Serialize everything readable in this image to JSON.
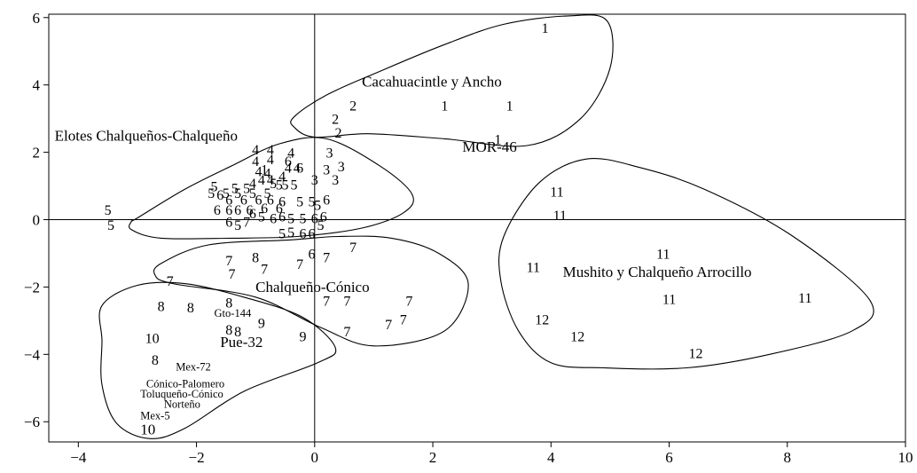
{
  "chart_data": {
    "type": "scatter",
    "xlim": [
      -4.5,
      10
    ],
    "ylim": [
      -6.6,
      6.1
    ],
    "x_ticks": [
      -4,
      -2,
      0,
      2,
      4,
      6,
      8,
      10
    ],
    "y_ticks": [
      -6,
      -4,
      -2,
      0,
      2,
      4,
      6
    ],
    "x_tick_labels": [
      "−4",
      "−2",
      "0",
      "2",
      "4",
      "6",
      "8",
      "10"
    ],
    "y_tick_labels": [
      "−6",
      "−4",
      "−2",
      "0",
      "2",
      "4",
      "6"
    ],
    "grid": false,
    "reference_lines": {
      "x": 0,
      "y": 0
    },
    "points": [
      {
        "x": 3.9,
        "y": 5.7,
        "label": "1"
      },
      {
        "x": 2.2,
        "y": 3.4,
        "label": "1"
      },
      {
        "x": 3.3,
        "y": 3.4,
        "label": "1"
      },
      {
        "x": 3.1,
        "y": 2.4,
        "label": "1"
      },
      {
        "x": 0.65,
        "y": 3.4,
        "label": "2"
      },
      {
        "x": 0.35,
        "y": 3.0,
        "label": "2"
      },
      {
        "x": 0.4,
        "y": 2.6,
        "label": "2"
      },
      {
        "x": 0.25,
        "y": 2.0,
        "label": "3"
      },
      {
        "x": 0.45,
        "y": 1.6,
        "label": "3"
      },
      {
        "x": 0.2,
        "y": 1.5,
        "label": "3"
      },
      {
        "x": 0.0,
        "y": 1.2,
        "label": "3"
      },
      {
        "x": 0.35,
        "y": 1.2,
        "label": "3"
      },
      {
        "x": -1.0,
        "y": 2.1,
        "label": "4"
      },
      {
        "x": -0.75,
        "y": 2.1,
        "label": "4"
      },
      {
        "x": -0.4,
        "y": 2.0,
        "label": "4"
      },
      {
        "x": -1.0,
        "y": 1.75,
        "label": "4"
      },
      {
        "x": -0.75,
        "y": 1.8,
        "label": "4"
      },
      {
        "x": -0.3,
        "y": 1.55,
        "label": "4"
      },
      {
        "x": -0.45,
        "y": 1.55,
        "label": "4"
      },
      {
        "x": -0.55,
        "y": 1.3,
        "label": "4"
      },
      {
        "x": -0.95,
        "y": 1.45,
        "label": "4"
      },
      {
        "x": -0.8,
        "y": 1.4,
        "label": "4"
      },
      {
        "x": -0.75,
        "y": 1.2,
        "label": "4"
      },
      {
        "x": -0.9,
        "y": 1.2,
        "label": "4"
      },
      {
        "x": -1.05,
        "y": 1.1,
        "label": "4"
      },
      {
        "x": -0.45,
        "y": 1.75,
        "label": "6"
      },
      {
        "x": -0.25,
        "y": 1.55,
        "label": "6"
      },
      {
        "x": -0.85,
        "y": 1.5,
        "label": "1"
      },
      {
        "x": -0.5,
        "y": 1.05,
        "label": "5"
      },
      {
        "x": -0.6,
        "y": 1.05,
        "label": "5"
      },
      {
        "x": -0.7,
        "y": 1.1,
        "label": "5"
      },
      {
        "x": -0.35,
        "y": 1.05,
        "label": "5"
      },
      {
        "x": -1.15,
        "y": 0.95,
        "label": "5"
      },
      {
        "x": -1.35,
        "y": 0.95,
        "label": "5"
      },
      {
        "x": -1.7,
        "y": 1.0,
        "label": "5"
      },
      {
        "x": -1.75,
        "y": 0.8,
        "label": "5"
      },
      {
        "x": -1.5,
        "y": 0.8,
        "label": "5"
      },
      {
        "x": -1.3,
        "y": 0.8,
        "label": "5"
      },
      {
        "x": -1.05,
        "y": 0.8,
        "label": "5"
      },
      {
        "x": -0.8,
        "y": 0.8,
        "label": "5"
      },
      {
        "x": -1.6,
        "y": 0.75,
        "label": "6"
      },
      {
        "x": -1.45,
        "y": 0.6,
        "label": "6"
      },
      {
        "x": -1.2,
        "y": 0.6,
        "label": "6"
      },
      {
        "x": -0.95,
        "y": 0.6,
        "label": "6"
      },
      {
        "x": -0.75,
        "y": 0.6,
        "label": "6"
      },
      {
        "x": -0.55,
        "y": 0.55,
        "label": "6"
      },
      {
        "x": -0.25,
        "y": 0.55,
        "label": "5"
      },
      {
        "x": -0.05,
        "y": 0.55,
        "label": "5"
      },
      {
        "x": 0.2,
        "y": 0.6,
        "label": "6"
      },
      {
        "x": 0.05,
        "y": 0.45,
        "label": "5"
      },
      {
        "x": -1.65,
        "y": 0.3,
        "label": "6"
      },
      {
        "x": -1.45,
        "y": 0.3,
        "label": "6"
      },
      {
        "x": -1.3,
        "y": 0.3,
        "label": "6"
      },
      {
        "x": -1.1,
        "y": 0.3,
        "label": "6"
      },
      {
        "x": -0.85,
        "y": 0.35,
        "label": "6"
      },
      {
        "x": -0.6,
        "y": 0.35,
        "label": "6"
      },
      {
        "x": -1.05,
        "y": 0.2,
        "label": "6"
      },
      {
        "x": -0.55,
        "y": 0.1,
        "label": "6"
      },
      {
        "x": -0.4,
        "y": 0.05,
        "label": "5"
      },
      {
        "x": -0.2,
        "y": 0.05,
        "label": "5"
      },
      {
        "x": 0.0,
        "y": 0.05,
        "label": "6"
      },
      {
        "x": 0.15,
        "y": 0.1,
        "label": "6"
      },
      {
        "x": -0.9,
        "y": 0.1,
        "label": "5"
      },
      {
        "x": -0.7,
        "y": 0.05,
        "label": "6"
      },
      {
        "x": -1.45,
        "y": -0.05,
        "label": "6"
      },
      {
        "x": -1.3,
        "y": -0.15,
        "label": "5"
      },
      {
        "x": -1.15,
        "y": -0.05,
        "label": "7"
      },
      {
        "x": -0.55,
        "y": -0.4,
        "label": "5"
      },
      {
        "x": -0.4,
        "y": -0.35,
        "label": "5"
      },
      {
        "x": -0.2,
        "y": -0.4,
        "label": "6"
      },
      {
        "x": -0.05,
        "y": -0.4,
        "label": "6"
      },
      {
        "x": 0.1,
        "y": -0.15,
        "label": "5"
      },
      {
        "x": -3.5,
        "y": 0.3,
        "label": "5"
      },
      {
        "x": -3.45,
        "y": -0.15,
        "label": "5"
      },
      {
        "x": 0.65,
        "y": -0.8,
        "label": "7"
      },
      {
        "x": -0.05,
        "y": -1.0,
        "label": "6"
      },
      {
        "x": 0.2,
        "y": -1.1,
        "label": "7"
      },
      {
        "x": -1.45,
        "y": -1.2,
        "label": "7"
      },
      {
        "x": -1.0,
        "y": -1.1,
        "label": "8"
      },
      {
        "x": -0.25,
        "y": -1.3,
        "label": "7"
      },
      {
        "x": -0.85,
        "y": -1.45,
        "label": "7"
      },
      {
        "x": -1.4,
        "y": -1.6,
        "label": "7"
      },
      {
        "x": -2.45,
        "y": -1.8,
        "label": "7"
      },
      {
        "x": 0.2,
        "y": -2.4,
        "label": "7"
      },
      {
        "x": 0.55,
        "y": -2.4,
        "label": "7"
      },
      {
        "x": 1.6,
        "y": -2.4,
        "label": "7"
      },
      {
        "x": 1.5,
        "y": -2.95,
        "label": "7"
      },
      {
        "x": 1.25,
        "y": -3.1,
        "label": "7"
      },
      {
        "x": 0.55,
        "y": -3.3,
        "label": "7"
      },
      {
        "x": -2.6,
        "y": -2.55,
        "label": "8"
      },
      {
        "x": -2.1,
        "y": -2.6,
        "label": "8"
      },
      {
        "x": -1.45,
        "y": -2.45,
        "label": "8"
      },
      {
        "x": -1.45,
        "y": -3.25,
        "label": "8"
      },
      {
        "x": -1.3,
        "y": -3.3,
        "label": "8"
      },
      {
        "x": -0.9,
        "y": -3.05,
        "label": "9"
      },
      {
        "x": -0.2,
        "y": -3.45,
        "label": "9"
      },
      {
        "x": -2.7,
        "y": -4.15,
        "label": "8"
      },
      {
        "x": -2.75,
        "y": -3.5,
        "label": "10"
      },
      {
        "x": 4.1,
        "y": 0.85,
        "label": "11"
      },
      {
        "x": 4.15,
        "y": 0.15,
        "label": "11"
      },
      {
        "x": 5.9,
        "y": -1.0,
        "label": "11"
      },
      {
        "x": 3.7,
        "y": -1.4,
        "label": "11"
      },
      {
        "x": 6.0,
        "y": -2.35,
        "label": "11"
      },
      {
        "x": 8.3,
        "y": -2.3,
        "label": "11"
      },
      {
        "x": 3.85,
        "y": -2.95,
        "label": "12"
      },
      {
        "x": 4.45,
        "y": -3.45,
        "label": "12"
      },
      {
        "x": 6.45,
        "y": -3.95,
        "label": "12"
      }
    ],
    "named_points": [
      {
        "x": -1.7,
        "y": -2.75,
        "label": "Gto-144",
        "size": "small"
      },
      {
        "x": -1.6,
        "y": -3.65,
        "label": "Pue-32",
        "size": "large"
      },
      {
        "x": 2.5,
        "y": 2.15,
        "label": "MOR-46",
        "size": "large"
      },
      {
        "x": -2.35,
        "y": -4.35,
        "label": "Mex-72",
        "size": "small"
      },
      {
        "x": -2.85,
        "y": -4.85,
        "label": "Cónico-Palomero",
        "size": "small"
      },
      {
        "x": -2.95,
        "y": -5.15,
        "label": "Toluqueño-Cónico",
        "size": "small"
      },
      {
        "x": -2.55,
        "y": -5.45,
        "label": "Norteño",
        "size": "small"
      },
      {
        "x": -2.95,
        "y": -5.8,
        "label": "Mex-5",
        "size": "small"
      },
      {
        "x": -2.95,
        "y": -6.25,
        "label": "10",
        "size": "large"
      }
    ],
    "groups": [
      {
        "name": "Cacahuacintle y Ancho",
        "label_x": 0.8,
        "label_y": 3.95,
        "outline": [
          [
            -0.35,
            3.05
          ],
          [
            0.2,
            3.7
          ],
          [
            1.1,
            4.4
          ],
          [
            2.2,
            5.2
          ],
          [
            3.2,
            5.8
          ],
          [
            4.3,
            6.05
          ],
          [
            4.95,
            5.9
          ],
          [
            5.0,
            4.5
          ],
          [
            4.5,
            3.0
          ],
          [
            3.6,
            2.2
          ],
          [
            2.2,
            2.4
          ],
          [
            0.9,
            2.55
          ],
          [
            0.0,
            2.45
          ],
          [
            -0.35,
            2.75
          ]
        ]
      },
      {
        "name": "Elotes Chalqueños-Chalqueño",
        "label_x": -4.4,
        "label_y": 2.35,
        "outline": [
          [
            -3.0,
            0.05
          ],
          [
            -2.2,
            0.9
          ],
          [
            -1.4,
            1.6
          ],
          [
            -0.6,
            2.25
          ],
          [
            0.2,
            2.4
          ],
          [
            1.1,
            1.6
          ],
          [
            1.65,
            0.75
          ],
          [
            1.5,
            0.2
          ],
          [
            0.8,
            -0.25
          ],
          [
            -0.3,
            -0.5
          ],
          [
            -1.4,
            -0.55
          ],
          [
            -2.6,
            -0.55
          ],
          [
            -3.1,
            -0.3
          ],
          [
            -3.1,
            -0.05
          ]
        ]
      },
      {
        "name": "Chalqueño-Cónico",
        "label_x": -1.0,
        "label_y": -2.15,
        "outline": [
          [
            -2.6,
            -1.3
          ],
          [
            -1.8,
            -0.75
          ],
          [
            -0.4,
            -0.6
          ],
          [
            0.4,
            -0.5
          ],
          [
            1.3,
            -0.55
          ],
          [
            2.1,
            -1.0
          ],
          [
            2.6,
            -1.9
          ],
          [
            2.2,
            -3.3
          ],
          [
            1.0,
            -3.75
          ],
          [
            0.1,
            -3.2
          ],
          [
            -1.0,
            -2.3
          ],
          [
            -2.4,
            -1.9
          ],
          [
            -2.7,
            -1.65
          ]
        ]
      },
      {
        "name": "Mushito y Chalqueño Arrocillo",
        "label_x": 4.2,
        "label_y": -1.7,
        "outline": [
          [
            3.2,
            -0.5
          ],
          [
            3.8,
            1.1
          ],
          [
            4.6,
            1.8
          ],
          [
            5.5,
            1.55
          ],
          [
            6.6,
            0.9
          ],
          [
            8.1,
            -0.5
          ],
          [
            9.4,
            -2.4
          ],
          [
            9.1,
            -3.3
          ],
          [
            7.7,
            -4.0
          ],
          [
            6.3,
            -4.4
          ],
          [
            4.9,
            -4.4
          ],
          [
            4.0,
            -4.25
          ],
          [
            3.45,
            -3.3
          ],
          [
            3.15,
            -1.8
          ]
        ]
      },
      {
        "name": "",
        "label_x": null,
        "label_y": null,
        "outline": [
          [
            -3.6,
            -2.55
          ],
          [
            -3.0,
            -1.95
          ],
          [
            -2.2,
            -1.9
          ],
          [
            -1.2,
            -2.3
          ],
          [
            -0.2,
            -2.9
          ],
          [
            0.35,
            -3.8
          ],
          [
            0.05,
            -4.25
          ],
          [
            -1.2,
            -5.1
          ],
          [
            -2.2,
            -6.2
          ],
          [
            -2.8,
            -6.5
          ],
          [
            -3.35,
            -6.05
          ],
          [
            -3.6,
            -4.9
          ],
          [
            -3.6,
            -3.6
          ]
        ]
      }
    ]
  }
}
